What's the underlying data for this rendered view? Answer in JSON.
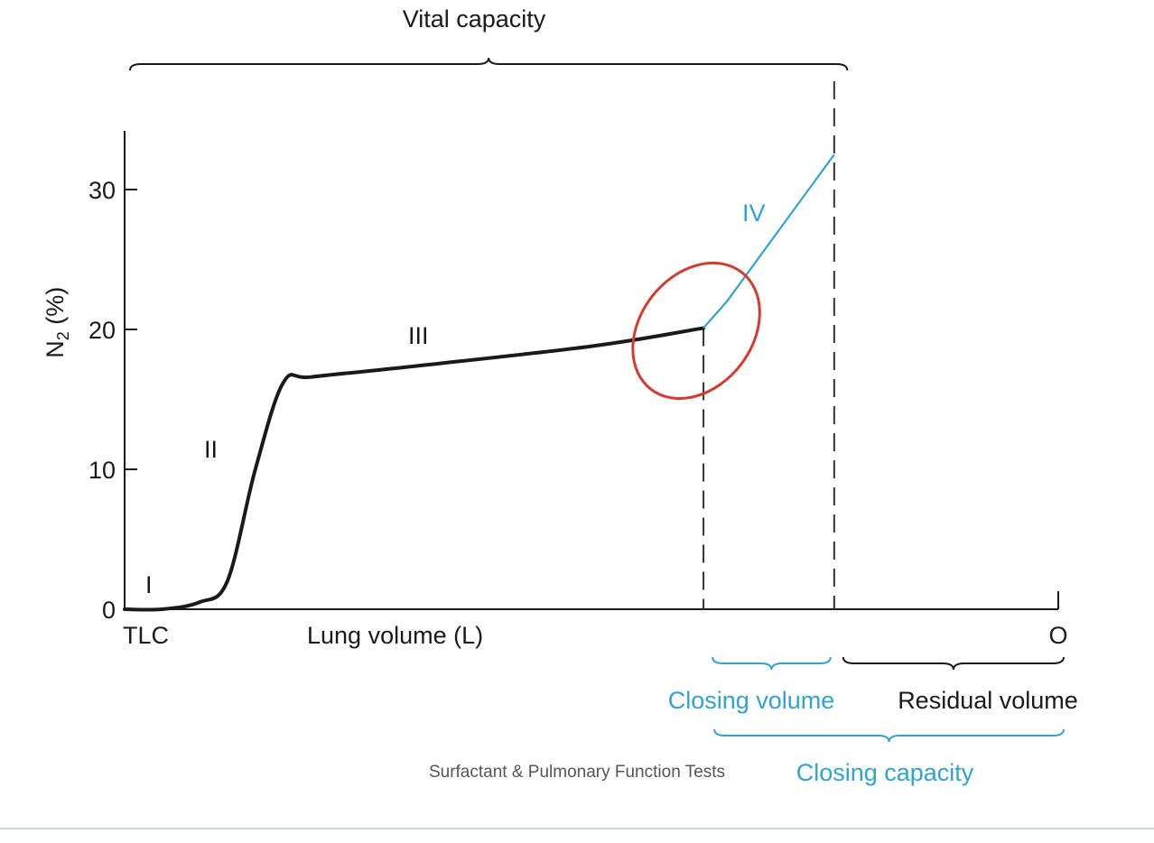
{
  "chart_data": {
    "type": "line",
    "ylabel_main": "N",
    "ylabel_sub": "2",
    "ylabel_unit": " (%)",
    "xlabel": "Lung volume (L)",
    "y_ticks": [
      "0",
      "10",
      "20",
      "30"
    ],
    "y_tick_values": [
      0,
      10,
      20,
      30
    ],
    "ylim": [
      0,
      34
    ],
    "x_start_label": "TLC",
    "x_end_label": "O",
    "x_reading": "deep expiration from TLC toward residual volume (O)",
    "phase_labels": [
      "I",
      "II",
      "III",
      "IV"
    ],
    "series": [
      {
        "phase": "I-III",
        "color": "#1a1a1a",
        "points": [
          [
            0,
            0
          ],
          [
            4,
            0
          ],
          [
            8,
            0.5
          ],
          [
            11,
            2
          ],
          [
            14,
            10
          ],
          [
            17,
            16.2
          ],
          [
            20,
            16.6
          ],
          [
            30,
            17.3
          ],
          [
            50,
            18.8
          ],
          [
            62,
            20.1
          ]
        ]
      },
      {
        "phase": "IV",
        "color": "#2ea3d4",
        "points": [
          [
            62,
            20.1
          ],
          [
            64.5,
            22
          ],
          [
            76,
            32.5
          ]
        ]
      }
    ],
    "markers": {
      "closing_volume_start_x": 62,
      "residual_volume_start_x": 76,
      "end_x": 100
    },
    "annotations": {
      "vital_capacity": "Vital capacity",
      "closing_volume": "Closing volume",
      "residual_volume": "Residual volume",
      "closing_capacity": "Closing capacity"
    },
    "highlight_color": "#d63a2c",
    "accent_color": "#2ea3d4"
  },
  "caption": "Surfactant & Pulmonary Function Tests"
}
